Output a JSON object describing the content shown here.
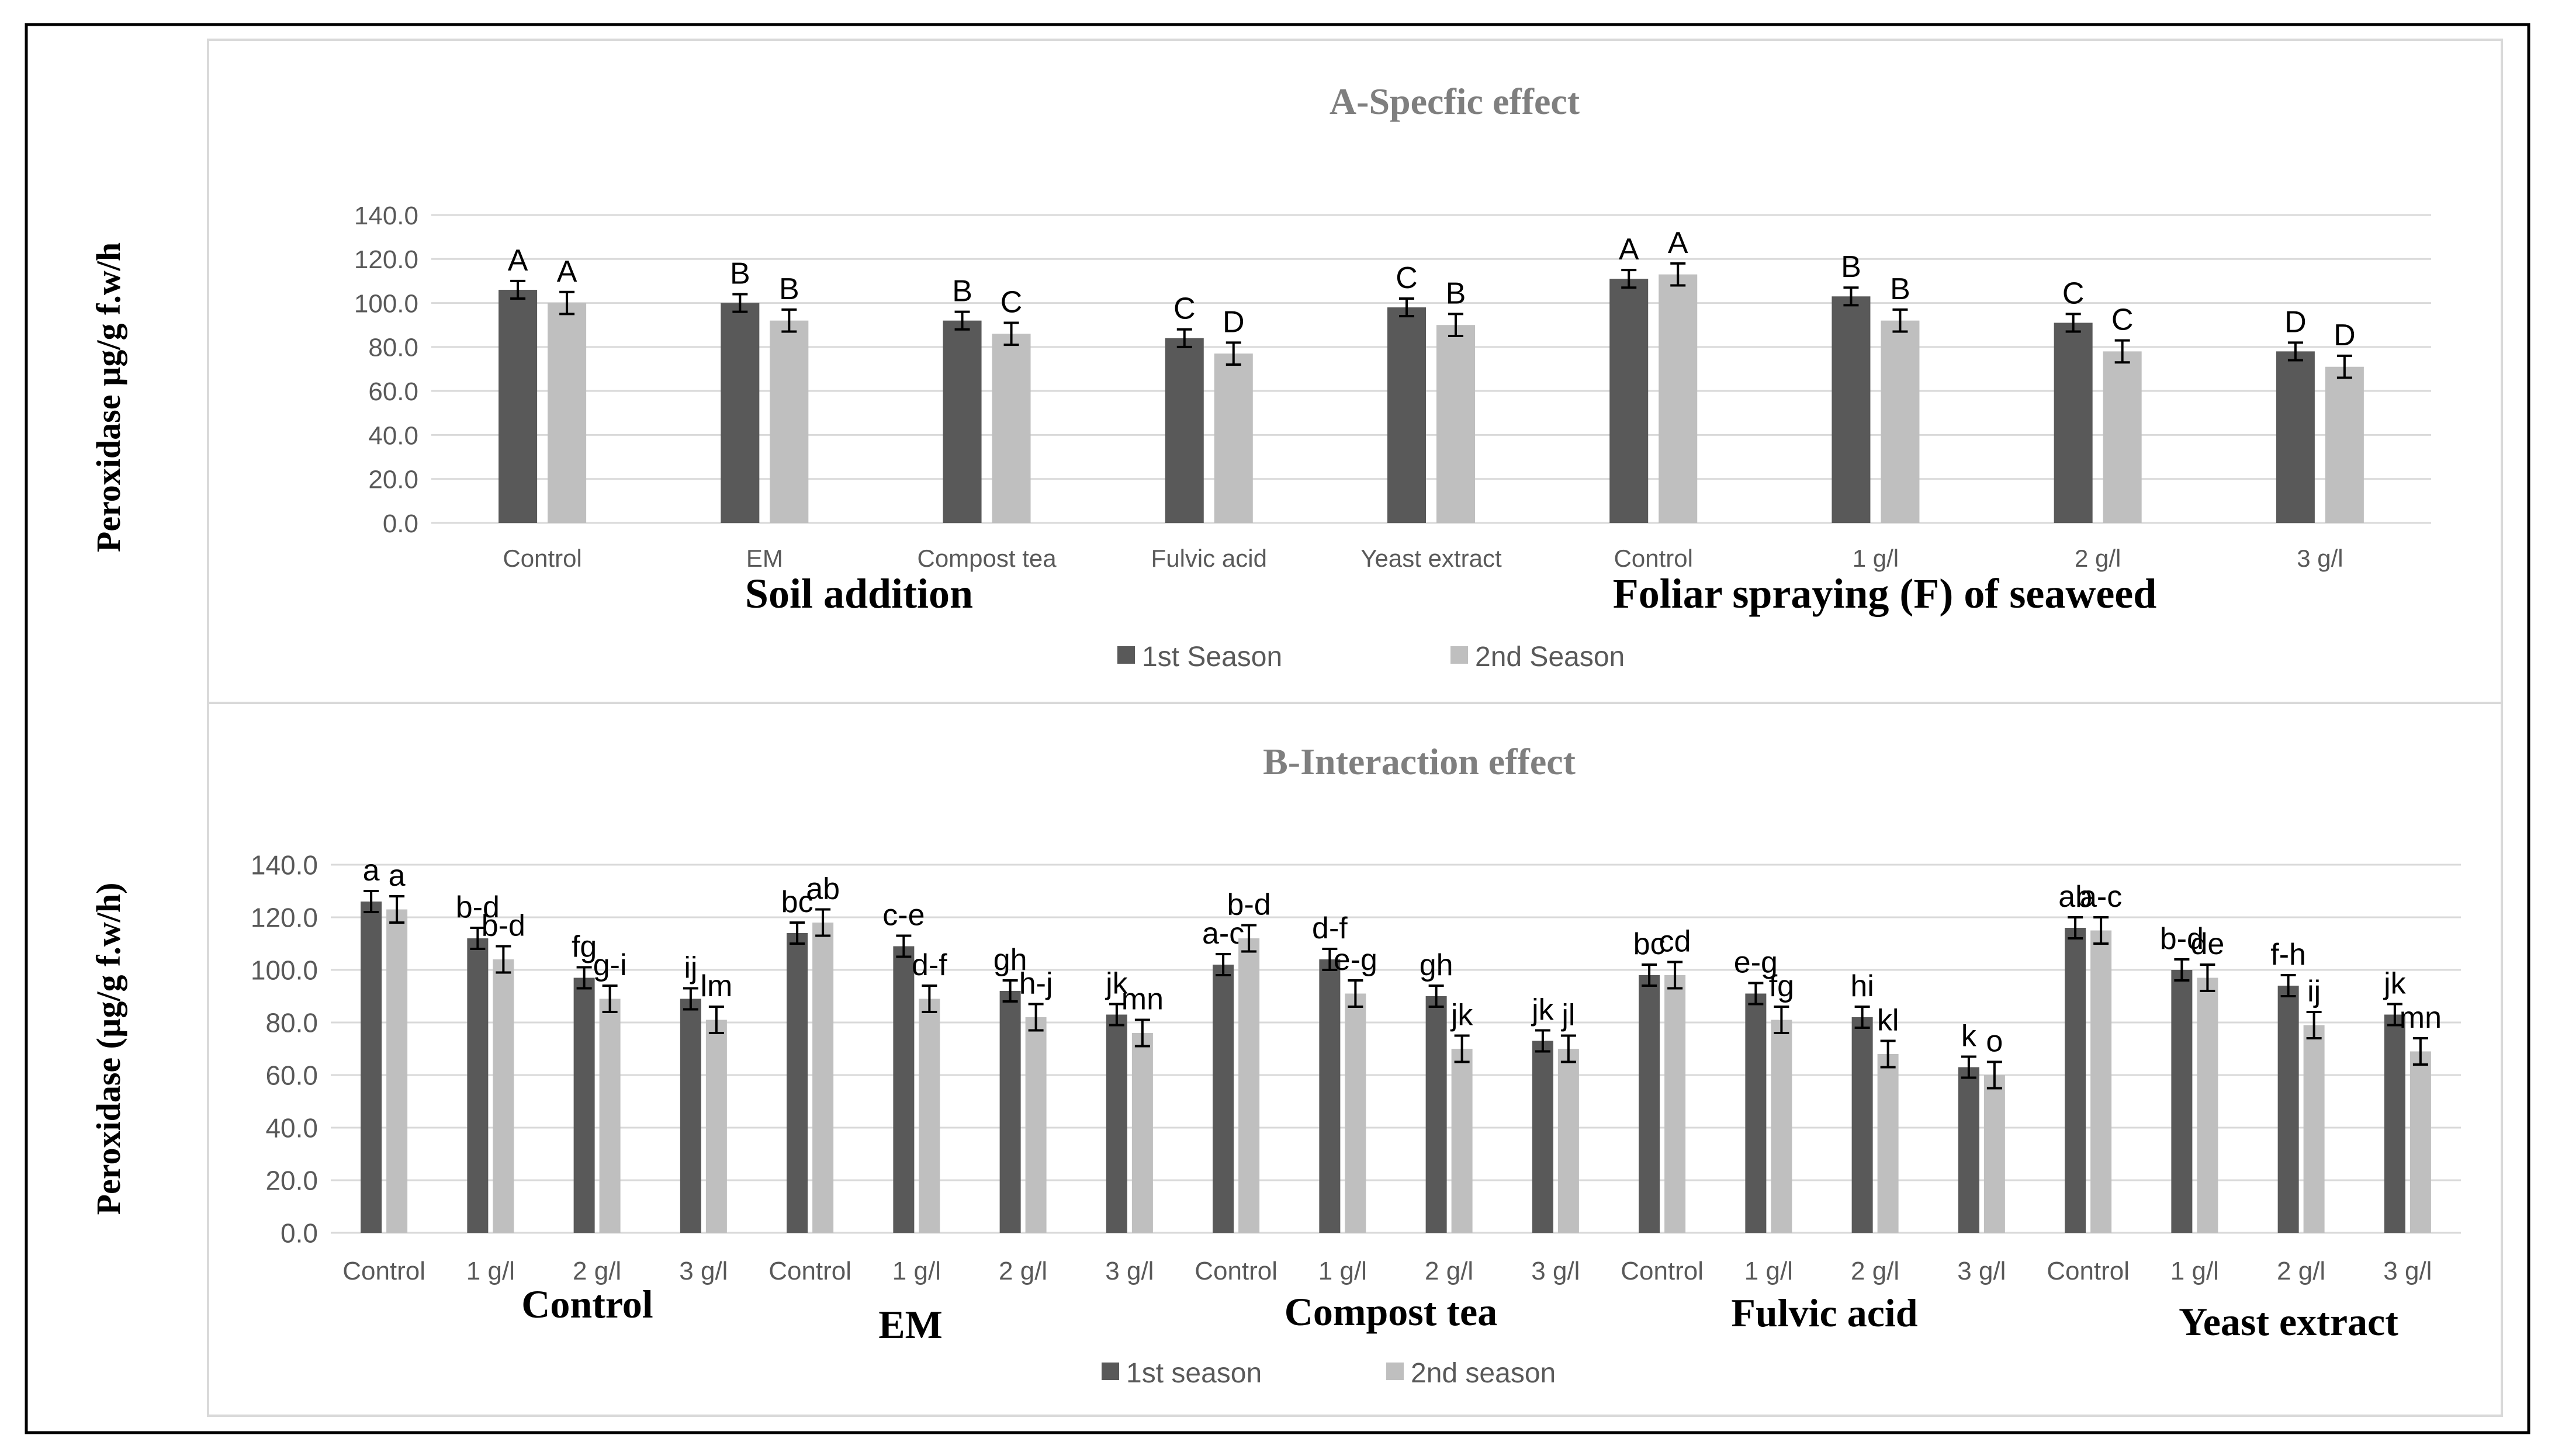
{
  "colors": {
    "season1": "#595959",
    "season2": "#bfbfbf",
    "frame": "#000000",
    "panel_border": "#d9d9d9",
    "grid": "#d9d9d9",
    "title": "#7f7f7f",
    "text": "#000000",
    "tick": "#595959"
  },
  "chart_data": [
    {
      "type": "bar",
      "title": "A-Specfic effect",
      "ylabel": "Peroxidase µg/g f.w/h",
      "ylim": [
        0,
        140
      ],
      "yticks": [
        "0.0",
        "20.0",
        "40.0",
        "60.0",
        "80.0",
        "100.0",
        "120.0",
        "140.0"
      ],
      "grid": true,
      "legend_position": "bottom",
      "categories": [
        "Control",
        "EM",
        "Compost tea",
        "Fulvic acid",
        "Yeast extract",
        "Control",
        "1 g/l",
        "2 g/l",
        "3 g/l"
      ],
      "groups": [
        {
          "label": "Soil addition",
          "categories": [
            0,
            1,
            2,
            3,
            4
          ]
        },
        {
          "label": "Foliar spraying (F) of seaweed",
          "categories": [
            5,
            6,
            7,
            8
          ]
        }
      ],
      "series": [
        {
          "name": "1st Season",
          "values": [
            106,
            100,
            92,
            84,
            98,
            111,
            103,
            91,
            78
          ],
          "errors": [
            4,
            4,
            4,
            4,
            4,
            4,
            4,
            4,
            4
          ],
          "letters": [
            "A",
            "B",
            "B",
            "C",
            "C",
            "A",
            "B",
            "C",
            "D"
          ]
        },
        {
          "name": "2nd Season",
          "values": [
            100,
            92,
            86,
            77,
            90,
            113,
            92,
            78,
            71
          ],
          "errors": [
            5,
            5,
            5,
            5,
            5,
            5,
            5,
            5,
            5
          ],
          "letters": [
            "A",
            "B",
            "C",
            "D",
            "B",
            "A",
            "B",
            "C",
            "D"
          ]
        }
      ]
    },
    {
      "type": "bar",
      "title": "B-Interaction effect",
      "ylabel": "Peroxidase (µg/g f.w/h)",
      "ylim": [
        0,
        140
      ],
      "yticks": [
        "0.0",
        "20.0",
        "40.0",
        "60.0",
        "80.0",
        "100.0",
        "120.0",
        "140.0"
      ],
      "grid": true,
      "legend_position": "bottom",
      "categories": [
        "Control",
        "1 g/l",
        "2 g/l",
        "3 g/l",
        "Control",
        "1 g/l",
        "2 g/l",
        "3 g/l",
        "Control",
        "1 g/l",
        "2 g/l",
        "3 g/l",
        "Control",
        "1 g/l",
        "2 g/l",
        "3 g/l",
        "Control",
        "1 g/l",
        "2 g/l",
        "3 g/l"
      ],
      "groups": [
        {
          "label": "Control",
          "categories": [
            0,
            1,
            2,
            3
          ]
        },
        {
          "label": "EM",
          "categories": [
            4,
            5,
            6,
            7
          ]
        },
        {
          "label": "Compost tea",
          "categories": [
            8,
            9,
            10,
            11
          ]
        },
        {
          "label": "Fulvic acid",
          "categories": [
            12,
            13,
            14,
            15
          ]
        },
        {
          "label": "Yeast extract",
          "categories": [
            16,
            17,
            18,
            19
          ]
        }
      ],
      "series": [
        {
          "name": "1st season",
          "values": [
            126,
            112,
            97,
            89,
            114,
            109,
            92,
            83,
            102,
            104,
            90,
            73,
            98,
            91,
            82,
            63,
            116,
            100,
            94,
            83
          ],
          "errors": [
            4,
            4,
            4,
            4,
            4,
            4,
            4,
            4,
            4,
            4,
            4,
            4,
            4,
            4,
            4,
            4,
            4,
            4,
            4,
            4
          ],
          "letters": [
            "a",
            "b-d",
            "fg",
            "ij",
            "bc",
            "c-e",
            "gh",
            "jk",
            "a-c",
            "d-f",
            "gh",
            "jk",
            "bc",
            "e-g",
            "hi",
            "k",
            "ab",
            "b-d",
            "f-h",
            "jk"
          ]
        },
        {
          "name": "2nd season",
          "values": [
            123,
            104,
            89,
            81,
            118,
            89,
            82,
            76,
            112,
            91,
            70,
            70,
            98,
            81,
            68,
            60,
            115,
            97,
            79,
            69
          ],
          "errors": [
            5,
            5,
            5,
            5,
            5,
            5,
            5,
            5,
            5,
            5,
            5,
            5,
            5,
            5,
            5,
            5,
            5,
            5,
            5,
            5
          ],
          "letters": [
            "a",
            "b-d",
            "g-i",
            "lm",
            "ab",
            "d-f",
            "h-j",
            "mn",
            "b-d",
            "e-g",
            "jk",
            "jl",
            "cd",
            "fg",
            "kl",
            "o",
            "a-c",
            "de",
            "ij",
            "mn"
          ]
        }
      ]
    }
  ]
}
